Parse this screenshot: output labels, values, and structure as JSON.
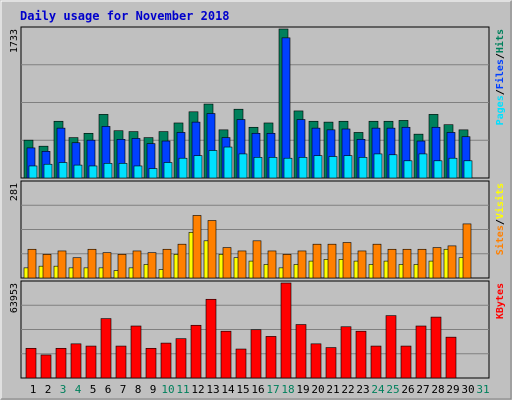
{
  "colors": {
    "frame_bg": "#c0c0c0",
    "plot_bg": "#c0c0c0",
    "title": "#0000cc",
    "hits": "#00805c",
    "files": "#0040ff",
    "pages": "#00e0ff",
    "visits": "#ffff00",
    "sites": "#ff8000",
    "kbytes": "#ff0000",
    "weekend_label": "#00805c",
    "weekday_label": "#000000"
  },
  "chart_data": {
    "type": "bar",
    "title": "Daily usage for November 2018",
    "days": [
      "1",
      "2",
      "3",
      "4",
      "5",
      "6",
      "7",
      "8",
      "9",
      "10",
      "11",
      "12",
      "13",
      "14",
      "15",
      "16",
      "17",
      "18",
      "19",
      "20",
      "21",
      "22",
      "23",
      "24",
      "25",
      "26",
      "27",
      "28",
      "29",
      "30",
      "31"
    ],
    "weekend_days": [
      "3",
      "4",
      "10",
      "11",
      "17",
      "18",
      "24",
      "25",
      "31"
    ],
    "panels": [
      {
        "id": "hits_files_pages",
        "ymax_label": "1733",
        "ymax": 1733,
        "legend": [
          "Pages",
          "/",
          "Files",
          "/",
          "Hits"
        ],
        "series": [
          {
            "name": "Hits",
            "values": [
              440,
              370,
              660,
              470,
              520,
              740,
              550,
              540,
              470,
              540,
              640,
              770,
              860,
              560,
              800,
              590,
              640,
              1733,
              780,
              660,
              650,
              660,
              530,
              660,
              660,
              670,
              510,
              740,
              620,
              560,
              null
            ]
          },
          {
            "name": "Files",
            "values": [
              350,
              310,
              580,
              410,
              440,
              600,
              450,
              460,
              400,
              430,
              530,
              650,
              750,
              470,
              680,
              520,
              520,
              1630,
              680,
              580,
              560,
              570,
              450,
              580,
              580,
              590,
              430,
              590,
              530,
              480,
              null
            ]
          },
          {
            "name": "Pages",
            "values": [
              140,
              160,
              180,
              150,
              140,
              170,
              170,
              140,
              110,
              180,
              230,
              260,
              320,
              360,
              280,
              240,
              240,
              230,
              240,
              260,
              250,
              260,
              240,
              280,
              270,
              200,
              280,
              200,
              230,
              200,
              null
            ]
          }
        ]
      },
      {
        "id": "visits_sites",
        "ymax_label": "281",
        "ymax": 281,
        "legend": [
          "Sites",
          "/",
          "Visits"
        ],
        "series": [
          {
            "name": "Visits",
            "values": [
              30,
              35,
              35,
              30,
              30,
              30,
              22,
              30,
              40,
              25,
              70,
              135,
              110,
              70,
              60,
              50,
              40,
              30,
              40,
              50,
              55,
              55,
              50,
              40,
              50,
              40,
              40,
              50,
              85,
              60,
              null
            ]
          },
          {
            "name": "Sites",
            "values": [
              85,
              70,
              80,
              60,
              85,
              75,
              70,
              80,
              75,
              85,
              100,
              185,
              170,
              90,
              80,
              110,
              80,
              70,
              80,
              100,
              100,
              105,
              80,
              100,
              85,
              85,
              85,
              90,
              95,
              160,
              null
            ]
          }
        ]
      },
      {
        "id": "kbytes",
        "ymax_label": "63953",
        "ymax": 63953,
        "legend": [
          "KBytes"
        ],
        "series": [
          {
            "name": "KBytes",
            "values": [
              20000,
              15500,
              20000,
              23000,
              21500,
              40000,
              21500,
              35000,
              20000,
              23500,
              26500,
              35500,
              53000,
              31500,
              19500,
              32500,
              28000,
              63953,
              36000,
              23000,
              20500,
              34500,
              31500,
              21500,
              42000,
              21500,
              35000,
              41000,
              27500,
              null,
              null
            ]
          }
        ]
      }
    ]
  }
}
